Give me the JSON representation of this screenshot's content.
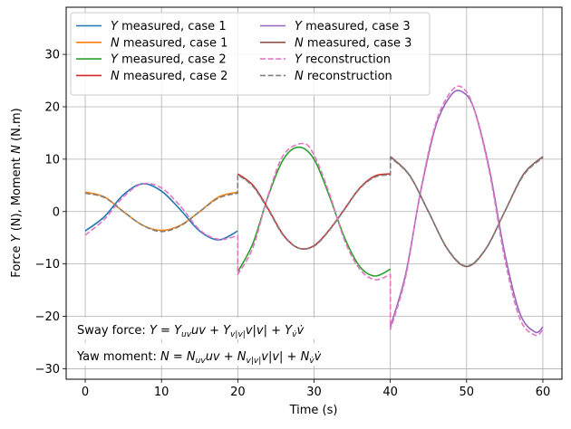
{
  "chart_data": {
    "type": "line",
    "xlabel": "Time (s)",
    "ylabel": "Force Y (N), Moment N (N.m)",
    "ylabel_parts": [
      "Force ",
      "Y",
      " (N), Moment ",
      "N",
      " (N.m)"
    ],
    "xlim": [
      -2.5,
      62.5
    ],
    "ylim": [
      -32,
      39
    ],
    "xticks": [
      0,
      10,
      20,
      30,
      40,
      50,
      60
    ],
    "yticks": [
      -30,
      -20,
      -10,
      0,
      10,
      20,
      30
    ],
    "grid": true,
    "legend_position": "top-left",
    "series": [
      {
        "name": "Y measured, case 1",
        "sym": "Y",
        "rest": " measured, case 1",
        "color": "#1f77b4",
        "dash": false,
        "x": [
          0,
          2.5,
          5,
          7.5,
          10,
          12.5,
          15,
          17.5,
          20
        ],
        "y": [
          -3.7,
          -1.0,
          3.2,
          5.3,
          3.9,
          0.3,
          -3.7,
          -5.4,
          -3.7
        ]
      },
      {
        "name": "N measured, case 1",
        "sym": "N",
        "rest": " measured, case 1",
        "color": "#ff7f0e",
        "dash": false,
        "x": [
          0,
          2.5,
          5,
          7.5,
          10,
          12.5,
          15,
          17.5,
          20
        ],
        "y": [
          3.7,
          2.8,
          0.0,
          -2.6,
          -3.6,
          -2.6,
          0.0,
          2.8,
          3.7
        ]
      },
      {
        "name": "Y measured, case 2",
        "sym": "Y",
        "rest": " measured, case 2",
        "color": "#2ca02c",
        "dash": false,
        "x": [
          20,
          22,
          24,
          26,
          28,
          30,
          32,
          34,
          36,
          38,
          40
        ],
        "y": [
          -11.5,
          -6.0,
          3.0,
          10.0,
          12.3,
          10.0,
          3.0,
          -5.0,
          -10.5,
          -12.3,
          -11.0
        ]
      },
      {
        "name": "N measured, case 2",
        "sym": "N",
        "rest": " measured, case 2",
        "color": "#d62728",
        "dash": false,
        "x": [
          20,
          22,
          24,
          26,
          28,
          30,
          32,
          34,
          36,
          38,
          40
        ],
        "y": [
          7.2,
          5.0,
          0.5,
          -4.5,
          -7.0,
          -6.5,
          -3.5,
          0.5,
          4.5,
          6.8,
          7.2
        ]
      },
      {
        "name": "Y measured, case 3",
        "sym": "Y",
        "rest": " measured, case 3",
        "color": "#9467bd",
        "dash": false,
        "x": [
          40,
          42,
          44,
          46,
          48,
          49.5,
          51,
          53,
          55,
          57,
          59,
          60
        ],
        "y": [
          -22.0,
          -12.0,
          4.0,
          16.5,
          22.3,
          22.8,
          19.5,
          8.0,
          -8.0,
          -19.5,
          -23.0,
          -22.0
        ]
      },
      {
        "name": "N measured, case 3",
        "sym": "N",
        "rest": " measured, case 3",
        "color": "#8c564b",
        "dash": false,
        "x": [
          40,
          42.5,
          45,
          47.5,
          50,
          52.5,
          55,
          57.5,
          60
        ],
        "y": [
          10.5,
          7.0,
          0.0,
          -7.2,
          -10.5,
          -7.2,
          0.0,
          7.2,
          10.5
        ]
      },
      {
        "name": "Y reconstruction",
        "sym": "Y",
        "rest": " reconstruction",
        "color": "#e377c2",
        "dash": true,
        "x": [
          0,
          2.5,
          5,
          7.5,
          10,
          12.5,
          15,
          17.5,
          20,
          20,
          22,
          24,
          26,
          28.5,
          30,
          32,
          34,
          36,
          38,
          40,
          40,
          42,
          44,
          46,
          48,
          49.5,
          51,
          53,
          55,
          57,
          59,
          60
        ],
        "y": [
          -4.5,
          -1.5,
          2.8,
          5.3,
          4.5,
          1.0,
          -3.5,
          -5.3,
          -4.6,
          -12.0,
          -6.8,
          3.2,
          10.8,
          13.0,
          10.8,
          3.5,
          -5.5,
          -11.0,
          -13.0,
          -12.0,
          -22.5,
          -12.5,
          4.2,
          17.0,
          23.0,
          23.6,
          19.5,
          7.5,
          -9.0,
          -20.5,
          -23.6,
          -22.5
        ]
      },
      {
        "name": "N reconstruction",
        "sym": "N",
        "rest": " reconstruction",
        "color": "#7f7f7f",
        "dash": true,
        "x": [
          0,
          2.5,
          5,
          7.5,
          10,
          12.5,
          15,
          17.5,
          20,
          20,
          22,
          24,
          26,
          28,
          30,
          32,
          34,
          36,
          38,
          40,
          40,
          42.5,
          45,
          47.5,
          50,
          52.5,
          55,
          57.5,
          60
        ],
        "y": [
          3.5,
          2.7,
          0.0,
          -2.6,
          -3.8,
          -2.7,
          0.0,
          2.6,
          3.5,
          7.0,
          4.8,
          0.3,
          -4.6,
          -7.0,
          -6.6,
          -3.6,
          0.4,
          4.4,
          6.6,
          7.0,
          10.3,
          6.9,
          0.0,
          -7.1,
          -10.4,
          -7.1,
          0.0,
          7.0,
          10.3
        ]
      }
    ],
    "annotations": [
      {
        "id": "sway",
        "label": "Sway force: ",
        "x": -1.2,
        "y": -23.8
      },
      {
        "id": "yaw",
        "label": "Yaw moment: ",
        "x": -1.2,
        "y": -28.6
      }
    ]
  }
}
